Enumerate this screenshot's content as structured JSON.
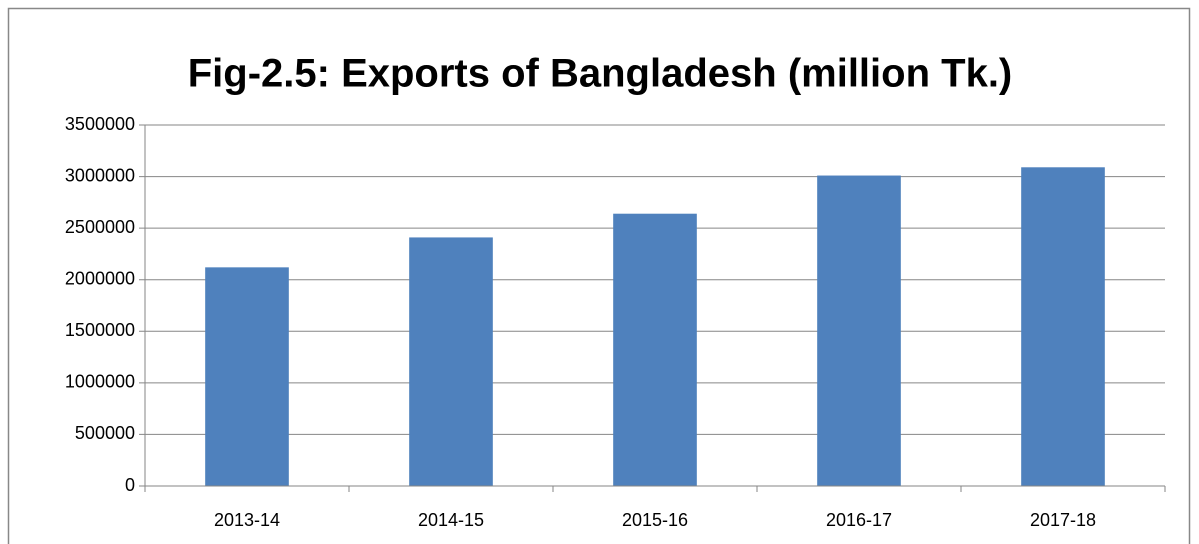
{
  "chart_data": {
    "type": "bar",
    "title": "Fig-2.5: Exports of Bangladesh (million Tk.)",
    "categories": [
      "2013-14",
      "2014-15",
      "2015-16",
      "2016-17",
      "2017-18"
    ],
    "values": [
      2120000,
      2410000,
      2640000,
      3010000,
      3090000
    ],
    "color": "#4f81bd",
    "ylim": [
      0,
      3500000
    ],
    "yticks": [
      0,
      500000,
      1000000,
      1500000,
      2000000,
      2500000,
      3000000,
      3500000
    ],
    "grid": true
  }
}
